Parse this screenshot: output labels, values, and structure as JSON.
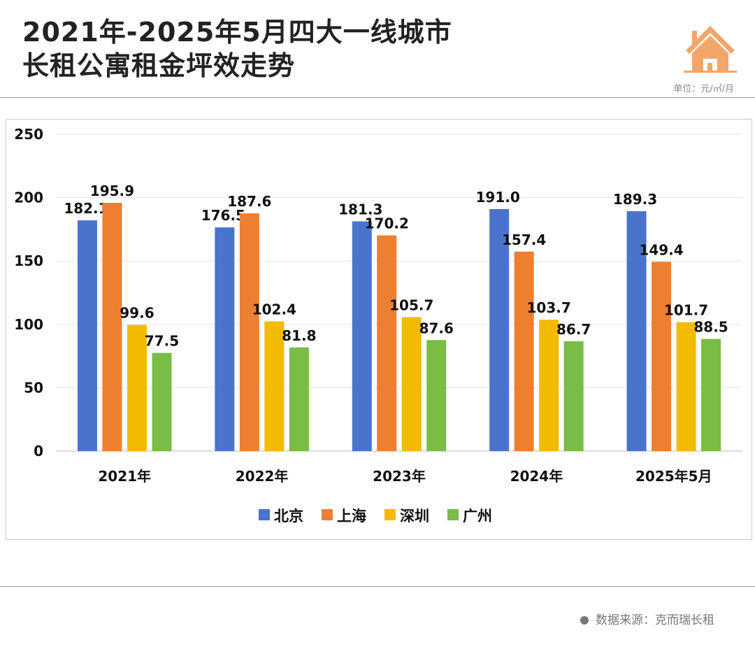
{
  "title_lines": [
    "2021年-2025年5月四大一线城市",
    "长租公寓租金坪效走势"
  ],
  "unit": "单位：元/㎡/月",
  "icon": "house-icon",
  "source": "数据来源：克而瑞长租",
  "chart_data": {
    "type": "bar",
    "categories": [
      "2021年",
      "2022年",
      "2023年",
      "2024年",
      "2025年5月"
    ],
    "series": [
      {
        "name": "北京",
        "color": "#4A74CC",
        "values": [
          182.1,
          176.5,
          181.3,
          191.0,
          189.3
        ]
      },
      {
        "name": "上海",
        "color": "#EE7F31",
        "values": [
          195.9,
          187.6,
          170.2,
          157.4,
          149.4
        ]
      },
      {
        "name": "深圳",
        "color": "#F3BB00",
        "values": [
          99.6,
          102.4,
          105.7,
          103.7,
          101.7
        ]
      },
      {
        "name": "广州",
        "color": "#79BC46",
        "values": [
          77.5,
          81.8,
          87.6,
          86.7,
          88.5
        ]
      }
    ],
    "ylim": [
      0,
      250
    ],
    "yticks": [
      0,
      50,
      100,
      150,
      200,
      250
    ],
    "grid": true,
    "legend": "bottom",
    "data_labels": true
  }
}
